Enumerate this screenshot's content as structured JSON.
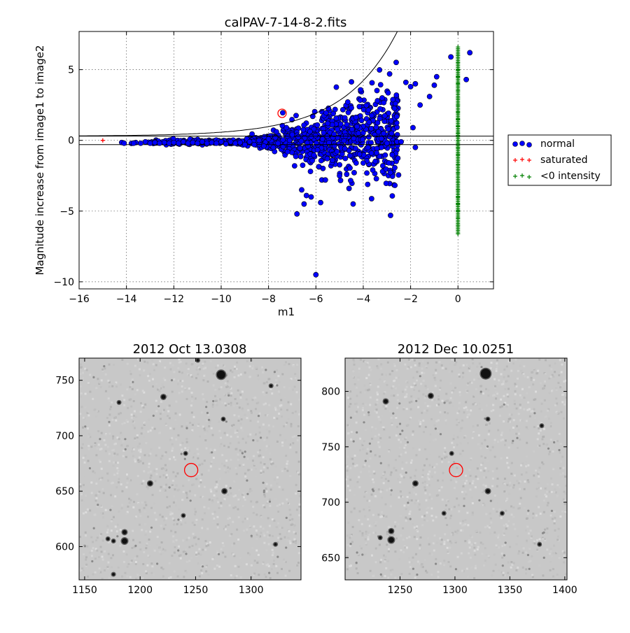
{
  "chart_data": [
    {
      "type": "scatter",
      "title": "calPAV-7-14-8-2.fits",
      "xlabel": "m1",
      "ylabel": "Magnitude increase from image1 to image2",
      "xlim": [
        -16,
        1.5
      ],
      "ylim": [
        -10.5,
        7.7
      ],
      "xticks": [
        "−16",
        "−14",
        "−12",
        "−10",
        "−8",
        "−6",
        "−4",
        "−2",
        "0"
      ],
      "xtick_values": [
        -16,
        -14,
        -12,
        -10,
        -8,
        -6,
        -4,
        -2,
        0
      ],
      "yticks": [
        "−10",
        "−5",
        "0",
        "5"
      ],
      "ytick_values": [
        -10,
        -5,
        0,
        5
      ],
      "grid": true,
      "legend_position": "right",
      "legend": [
        {
          "label": "normal",
          "marker": "circle",
          "color": "#0000ff"
        },
        {
          "label": "saturated",
          "marker": "plus",
          "color": "#ff0000"
        },
        {
          "label": "<0 intensity",
          "marker": "plus",
          "color": "#008000"
        }
      ],
      "series": [
        {
          "name": "normal",
          "color": "#0000ff",
          "marker": "circle",
          "points": [
            [
              -14.2,
              -0.15
            ],
            [
              -14.1,
              -0.2
            ],
            [
              -13.7,
              -0.2
            ],
            [
              -13.4,
              -0.2
            ],
            [
              -13.2,
              -0.1
            ],
            [
              -13.0,
              -0.2
            ],
            [
              -12.8,
              -0.15
            ],
            [
              -12.6,
              -0.2
            ],
            [
              -12.4,
              -0.15
            ],
            [
              -12.2,
              -0.2
            ],
            [
              -12.0,
              -0.15
            ],
            [
              -11.8,
              -0.2
            ],
            [
              -11.6,
              -0.1
            ],
            [
              -11.4,
              -0.2
            ],
            [
              -11.2,
              -0.15
            ],
            [
              -11.0,
              -0.2
            ],
            [
              -10.8,
              -0.1
            ],
            [
              -10.6,
              -0.2
            ],
            [
              -10.4,
              -0.15
            ],
            [
              -10.2,
              -0.2
            ],
            [
              -10.0,
              -0.1
            ],
            [
              -9.8,
              -0.25
            ],
            [
              -9.6,
              -0.1
            ],
            [
              -9.4,
              -0.2
            ],
            [
              -9.2,
              -0.15
            ],
            [
              -9.0,
              -0.3
            ],
            [
              -8.8,
              -0.1
            ],
            [
              -8.6,
              -0.3
            ],
            [
              -8.4,
              0.0
            ],
            [
              -8.2,
              -0.4
            ],
            [
              -8.0,
              0.1
            ],
            [
              -7.8,
              -0.5
            ],
            [
              -7.6,
              -0.2
            ],
            [
              -7.4,
              1.95
            ],
            [
              -7.2,
              -0.8
            ],
            [
              -7.0,
              0.4
            ],
            [
              -6.9,
              -1.8
            ],
            [
              -6.8,
              -5.2
            ],
            [
              -6.6,
              -3.5
            ],
            [
              -6.5,
              -4.5
            ],
            [
              -6.4,
              -3.9
            ],
            [
              -6.2,
              -4.0
            ],
            [
              -6.0,
              -9.5
            ],
            [
              -5.8,
              -4.4
            ],
            [
              -5.6,
              -2.8
            ],
            [
              -5.5,
              1.2
            ],
            [
              -5.0,
              -2.5
            ],
            [
              -4.6,
              -3.4
            ],
            [
              -4.5,
              2.3
            ],
            [
              -4.3,
              -1.6
            ],
            [
              -4.0,
              -1.6
            ],
            [
              -3.8,
              -0.5
            ],
            [
              -3.6,
              -2.1
            ],
            [
              -3.4,
              2.8
            ],
            [
              -3.2,
              3.0
            ],
            [
              -3.0,
              -0.2
            ],
            [
              -2.8,
              0.5
            ],
            [
              -2.6,
              3.2
            ],
            [
              -2.4,
              -0.1
            ],
            [
              -2.2,
              4.1
            ],
            [
              -2.0,
              3.8
            ],
            [
              -1.9,
              0.9
            ],
            [
              -1.8,
              -0.5
            ],
            [
              -1.8,
              4.0
            ],
            [
              -1.6,
              2.5
            ],
            [
              -1.2,
              3.1
            ],
            [
              -1.0,
              3.9
            ],
            [
              -0.9,
              4.5
            ],
            [
              -0.3,
              5.9
            ],
            [
              0.35,
              4.3
            ],
            [
              0.5,
              6.2
            ]
          ]
        },
        {
          "name": "saturated",
          "color": "#ff0000",
          "marker": "plus",
          "points": [
            [
              -15.0,
              0.0
            ]
          ]
        },
        {
          "name": "<0 intensity",
          "color": "#008000",
          "marker": "plus",
          "points": [
            [
              0,
              6.6
            ],
            [
              0,
              6.0
            ],
            [
              0,
              5.5
            ],
            [
              0,
              5.0
            ],
            [
              0,
              4.5
            ],
            [
              0,
              4.0
            ],
            [
              0,
              3.5
            ],
            [
              0,
              3.0
            ],
            [
              0,
              2.5
            ],
            [
              0,
              2.0
            ],
            [
              0,
              1.5
            ],
            [
              0,
              1.0
            ],
            [
              0,
              0.5
            ],
            [
              0,
              0.0
            ],
            [
              0,
              -0.5
            ],
            [
              0,
              -1.0
            ],
            [
              0,
              -1.7
            ],
            [
              0,
              -2.3
            ],
            [
              0,
              -3.0
            ],
            [
              0,
              -3.5
            ],
            [
              0,
              -4.0
            ],
            [
              0,
              -4.5
            ],
            [
              0,
              -5.0
            ],
            [
              0,
              -5.5
            ],
            [
              0,
              -6.0
            ],
            [
              0,
              -6.6
            ]
          ]
        }
      ],
      "reference_lines": [
        0.3,
        -0.3
      ],
      "upper_curve": "exponential boundary rising from about 0.3 at m1=-16 to above 7.7 near m1=-2.3"
    },
    {
      "type": "image",
      "title": "2012 Oct 13.0308",
      "xlim": [
        1145,
        1345
      ],
      "ylim": [
        570,
        770
      ],
      "xticks": [
        "1150",
        "1200",
        "1250",
        "1300"
      ],
      "xtick_values": [
        1150,
        1200,
        1250,
        1300
      ],
      "yticks": [
        "600",
        "650",
        "700",
        "750"
      ],
      "ytick_values": [
        600,
        650,
        700,
        750
      ],
      "marker_circle": [
        1246,
        669
      ],
      "stars": [
        [
          1273,
          755,
          6
        ],
        [
          1209,
          657,
          3
        ],
        [
          1221,
          735,
          3
        ],
        [
          1186,
          613,
          3
        ],
        [
          1186,
          605,
          4
        ],
        [
          1176,
          605,
          2
        ],
        [
          1171,
          607,
          2
        ],
        [
          1181,
          730,
          2
        ],
        [
          1241,
          684,
          2
        ],
        [
          1276,
          650,
          3
        ],
        [
          1275,
          715,
          2
        ],
        [
          1252,
          768,
          2
        ],
        [
          1322,
          602,
          2
        ],
        [
          1239,
          628,
          2
        ],
        [
          1176,
          575,
          2
        ],
        [
          1318,
          745,
          2
        ]
      ]
    },
    {
      "type": "image",
      "title": "2012 Dec 10.0251",
      "xlim": [
        1200,
        1402
      ],
      "ylim": [
        630,
        830
      ],
      "xticks": [
        "1250",
        "1300",
        "1350",
        "1400"
      ],
      "xtick_values": [
        1250,
        1300,
        1350,
        1400
      ],
      "yticks": [
        "650",
        "700",
        "750",
        "800"
      ],
      "ytick_values": [
        650,
        700,
        750,
        800
      ],
      "marker_circle": [
        1301,
        729
      ],
      "stars": [
        [
          1328,
          816,
          7
        ],
        [
          1264,
          717,
          3
        ],
        [
          1278,
          796,
          3
        ],
        [
          1242,
          674,
          3
        ],
        [
          1242,
          666,
          4
        ],
        [
          1232,
          668,
          2
        ],
        [
          1237,
          791,
          3
        ],
        [
          1297,
          744,
          2
        ],
        [
          1330,
          710,
          3
        ],
        [
          1330,
          775,
          2
        ],
        [
          1377,
          662,
          2
        ],
        [
          1290,
          690,
          2
        ],
        [
          1343,
          690,
          2
        ],
        [
          1379,
          769,
          2
        ]
      ]
    }
  ]
}
